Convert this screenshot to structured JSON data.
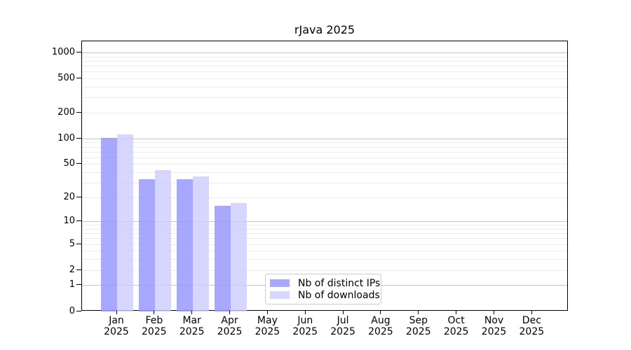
{
  "chart_data": {
    "type": "bar",
    "title": "rJava 2025",
    "categories": [
      "Jan",
      "Feb",
      "Mar",
      "Apr",
      "May",
      "Jun",
      "Jul",
      "Aug",
      "Sep",
      "Oct",
      "Nov",
      "Dec"
    ],
    "category_year": "2025",
    "series": [
      {
        "name": "Nb of distinct IPs",
        "color": "rgba(153,153,255,0.85)",
        "values": [
          103,
          33,
          33,
          16,
          0,
          0,
          0,
          0,
          0,
          0,
          0,
          0
        ]
      },
      {
        "name": "Nb of downloads",
        "color": "rgba(204,204,255,0.80)",
        "values": [
          113,
          43,
          36,
          17,
          0,
          0,
          0,
          0,
          0,
          0,
          0,
          0
        ]
      }
    ],
    "y_ticks": [
      0,
      1,
      2,
      5,
      10,
      20,
      50,
      100,
      200,
      500,
      1000
    ],
    "y_scale": "log1p",
    "ylim": [
      0,
      1365
    ],
    "grid": {
      "major_at": [
        1,
        10,
        100,
        1000
      ],
      "minor_multiples": [
        2,
        3,
        4,
        5,
        6,
        7,
        8,
        9
      ],
      "major_color": "#c3c3c3",
      "minor_color": "#ececec"
    },
    "legend": {
      "position": "lower center"
    },
    "frame_color": "#000000",
    "background_color": "#ffffff"
  }
}
